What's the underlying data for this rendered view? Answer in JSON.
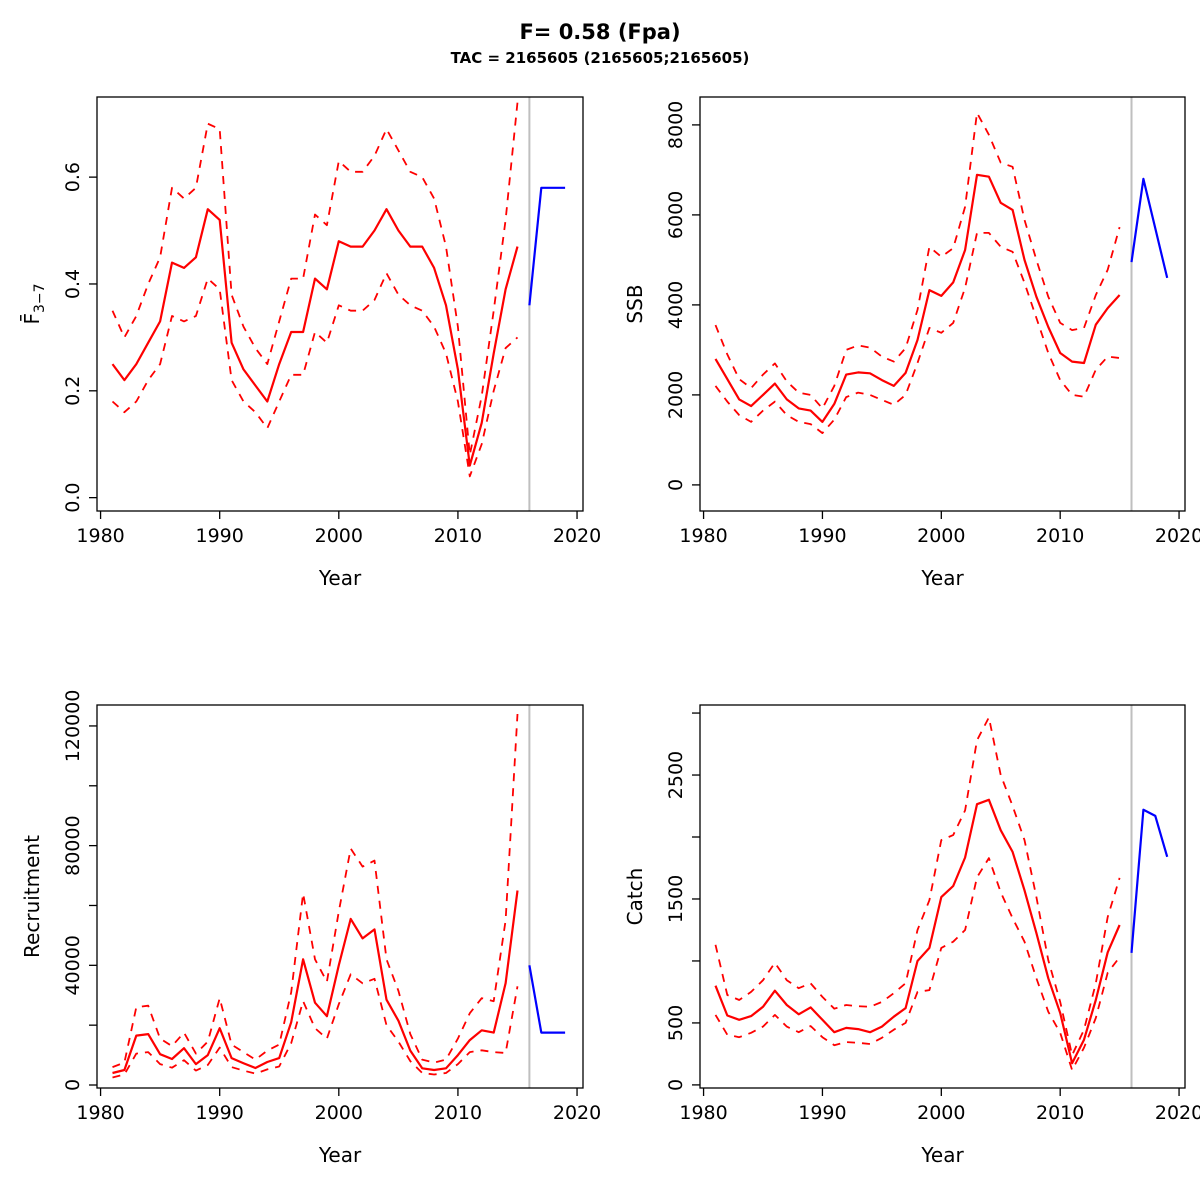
{
  "header": {
    "title": "F= 0.58 (Fpa)",
    "subtitle": "TAC = 2165605 (2165605;2165605)"
  },
  "colors": {
    "history": "#fe0000",
    "forecast": "#0000fe",
    "divider": "#bfbfbf",
    "axis": "#000000"
  },
  "divider_year": 2016,
  "chart_data": [
    {
      "type": "line",
      "name": "F3-7",
      "ylabel": "F3-7",
      "ylabel_parts": {
        "base": "F̄",
        "sub": "3−7"
      },
      "xlabel": "Year",
      "x": [
        1981,
        1982,
        1983,
        1984,
        1985,
        1986,
        1987,
        1988,
        1989,
        1990,
        1991,
        1992,
        1993,
        1994,
        1995,
        1996,
        1997,
        1998,
        1999,
        2000,
        2001,
        2002,
        2003,
        2004,
        2005,
        2006,
        2007,
        2008,
        2009,
        2010,
        2011,
        2012,
        2013,
        2014,
        2015
      ],
      "series": [
        {
          "name": "median",
          "role": "history",
          "style": "solid",
          "values": [
            0.25,
            0.22,
            0.25,
            0.29,
            0.33,
            0.44,
            0.43,
            0.45,
            0.54,
            0.52,
            0.29,
            0.24,
            0.21,
            0.18,
            0.25,
            0.31,
            0.31,
            0.41,
            0.39,
            0.48,
            0.47,
            0.47,
            0.5,
            0.54,
            0.5,
            0.47,
            0.47,
            0.43,
            0.36,
            0.24,
            0.06,
            0.14,
            0.27,
            0.39,
            0.47
          ]
        },
        {
          "name": "upper-ci",
          "role": "history",
          "style": "dashed",
          "values": [
            0.35,
            0.3,
            0.34,
            0.4,
            0.45,
            0.58,
            0.56,
            0.58,
            0.7,
            0.69,
            0.38,
            0.32,
            0.28,
            0.25,
            0.33,
            0.41,
            0.41,
            0.53,
            0.51,
            0.63,
            0.61,
            0.61,
            0.64,
            0.69,
            0.65,
            0.61,
            0.6,
            0.56,
            0.47,
            0.32,
            0.08,
            0.19,
            0.35,
            0.52,
            0.74
          ]
        },
        {
          "name": "lower-ci",
          "role": "history",
          "style": "dashed",
          "values": [
            0.18,
            0.16,
            0.18,
            0.22,
            0.25,
            0.34,
            0.33,
            0.34,
            0.41,
            0.39,
            0.22,
            0.18,
            0.16,
            0.13,
            0.18,
            0.23,
            0.23,
            0.31,
            0.29,
            0.36,
            0.35,
            0.35,
            0.37,
            0.42,
            0.38,
            0.36,
            0.35,
            0.32,
            0.27,
            0.18,
            0.04,
            0.1,
            0.2,
            0.28,
            0.3
          ]
        },
        {
          "name": "forecast-median",
          "role": "forecast",
          "style": "solid",
          "x": [
            2016,
            2017,
            2018,
            2019
          ],
          "values": [
            0.36,
            0.58,
            0.58,
            0.58
          ]
        }
      ],
      "xlim": [
        1979.7,
        2020.5
      ],
      "ylim": [
        -0.025,
        0.75
      ],
      "xticks": [
        1980,
        1990,
        2000,
        2010,
        2020
      ],
      "yticks": [
        {
          "v": 0,
          "label": "0.0"
        },
        {
          "v": 0.2,
          "label": "0.2"
        },
        {
          "v": 0.4,
          "label": "0.4"
        },
        {
          "v": 0.6,
          "label": "0.6"
        }
      ],
      "grid": false,
      "legend": null
    },
    {
      "type": "line",
      "name": "SSB",
      "ylabel": "SSB",
      "xlabel": "Year",
      "x": [
        1981,
        1982,
        1983,
        1984,
        1985,
        1986,
        1987,
        1988,
        1989,
        1990,
        1991,
        1992,
        1993,
        1994,
        1995,
        1996,
        1997,
        1998,
        1999,
        2000,
        2001,
        2002,
        2003,
        2004,
        2005,
        2006,
        2007,
        2008,
        2009,
        2010,
        2011,
        2012,
        2013,
        2014,
        2015
      ],
      "series": [
        {
          "name": "median",
          "role": "history",
          "style": "solid",
          "values": [
            2800,
            2350,
            1900,
            1750,
            2000,
            2250,
            1900,
            1700,
            1650,
            1400,
            1800,
            2450,
            2500,
            2480,
            2330,
            2200,
            2490,
            3220,
            4330,
            4200,
            4500,
            5220,
            6890,
            6850,
            6270,
            6110,
            5000,
            4180,
            3510,
            2930,
            2740,
            2710,
            3560,
            3930,
            4220
          ]
        },
        {
          "name": "upper-ci",
          "role": "history",
          "style": "dashed",
          "values": [
            3550,
            2900,
            2350,
            2150,
            2450,
            2700,
            2300,
            2050,
            2000,
            1700,
            2200,
            3000,
            3100,
            3050,
            2850,
            2740,
            3040,
            3890,
            5290,
            5070,
            5260,
            6180,
            8270,
            7780,
            7160,
            7070,
            5890,
            5000,
            4180,
            3600,
            3440,
            3490,
            4220,
            4780,
            5730
          ]
        },
        {
          "name": "lower-ci",
          "role": "history",
          "style": "dashed",
          "values": [
            2200,
            1850,
            1550,
            1400,
            1650,
            1850,
            1550,
            1400,
            1350,
            1150,
            1450,
            1950,
            2050,
            2000,
            1890,
            1780,
            2000,
            2710,
            3490,
            3380,
            3600,
            4380,
            5600,
            5600,
            5290,
            5180,
            4490,
            3710,
            2930,
            2330,
            2000,
            1960,
            2560,
            2850,
            2820
          ]
        },
        {
          "name": "forecast-median",
          "role": "forecast",
          "style": "solid",
          "x": [
            2016,
            2017,
            2018,
            2019
          ],
          "values": [
            4950,
            6800,
            5700,
            4600
          ]
        }
      ],
      "xlim": [
        1979.7,
        2020.5
      ],
      "ylim": [
        -580,
        8620
      ],
      "xticks": [
        1980,
        1990,
        2000,
        2010,
        2020
      ],
      "yticks": [
        {
          "v": 0,
          "label": "0"
        },
        {
          "v": 2000,
          "label": "2000"
        },
        {
          "v": 4000,
          "label": "4000"
        },
        {
          "v": 6000,
          "label": "6000"
        },
        {
          "v": 8000,
          "label": "8000"
        }
      ],
      "grid": false,
      "legend": null
    },
    {
      "type": "line",
      "name": "Recruitment",
      "ylabel": "Recruitment",
      "xlabel": "Year",
      "x": [
        1981,
        1982,
        1983,
        1984,
        1985,
        1986,
        1987,
        1988,
        1989,
        1990,
        1991,
        1992,
        1993,
        1994,
        1995,
        1996,
        1997,
        1998,
        1999,
        2000,
        2001,
        2002,
        2003,
        2004,
        2005,
        2006,
        2007,
        2008,
        2009,
        2010,
        2011,
        2012,
        2013,
        2014,
        2015
      ],
      "series": [
        {
          "name": "median",
          "role": "history",
          "style": "solid",
          "values": [
            4000,
            5000,
            16500,
            17000,
            10300,
            8700,
            12300,
            7000,
            10000,
            19000,
            9000,
            7300,
            5700,
            7700,
            9000,
            21000,
            42000,
            27500,
            23000,
            40000,
            55500,
            49000,
            52000,
            28500,
            21500,
            11500,
            5600,
            5000,
            5600,
            10000,
            15000,
            18300,
            17500,
            34000,
            65000
          ]
        },
        {
          "name": "upper-ci",
          "role": "history",
          "style": "dashed",
          "values": [
            6000,
            7500,
            26000,
            26500,
            15500,
            13000,
            17500,
            10500,
            14500,
            29000,
            13500,
            11000,
            8500,
            11500,
            13500,
            31000,
            64000,
            42000,
            34500,
            58000,
            79000,
            73000,
            75000,
            42000,
            31500,
            17000,
            8500,
            7500,
            8500,
            15500,
            24000,
            29000,
            28000,
            55000,
            124000
          ]
        },
        {
          "name": "lower-ci",
          "role": "history",
          "style": "dashed",
          "values": [
            2500,
            3500,
            10500,
            11000,
            7000,
            5800,
            8300,
            4800,
            6700,
            12500,
            6000,
            4800,
            3800,
            5200,
            6200,
            14000,
            28000,
            19000,
            15500,
            27000,
            37000,
            34000,
            35500,
            20000,
            14500,
            8000,
            4000,
            3500,
            4000,
            7000,
            11000,
            11600,
            11000,
            10700,
            33000
          ]
        },
        {
          "name": "forecast-median",
          "role": "forecast",
          "style": "solid",
          "x": [
            2016,
            2017,
            2018,
            2019
          ],
          "values": [
            40000,
            17500,
            17500,
            17500
          ]
        }
      ],
      "xlim": [
        1979.7,
        2020.5
      ],
      "ylim": [
        -1000,
        127000
      ],
      "xticks": [
        1980,
        1990,
        2000,
        2010,
        2020
      ],
      "yticks": [
        {
          "v": 0,
          "label": "0"
        },
        {
          "v": 20000,
          "label": ""
        },
        {
          "v": 40000,
          "label": "40000"
        },
        {
          "v": 60000,
          "label": ""
        },
        {
          "v": 80000,
          "label": "80000"
        },
        {
          "v": 100000,
          "label": ""
        },
        {
          "v": 120000,
          "label": "120000"
        }
      ],
      "grid": false,
      "legend": null
    },
    {
      "type": "line",
      "name": "Catch",
      "ylabel": "Catch",
      "xlabel": "Year",
      "x": [
        1981,
        1982,
        1983,
        1984,
        1985,
        1986,
        1987,
        1988,
        1989,
        1990,
        1991,
        1992,
        1993,
        1994,
        1995,
        1996,
        1997,
        1998,
        1999,
        2000,
        2001,
        2002,
        2003,
        2004,
        2005,
        2006,
        2007,
        2008,
        2009,
        2010,
        2011,
        2012,
        2013,
        2014,
        2015
      ],
      "series": [
        {
          "name": "median",
          "role": "history",
          "style": "solid",
          "values": [
            800,
            560,
            525,
            555,
            630,
            760,
            645,
            570,
            625,
            525,
            425,
            460,
            450,
            425,
            470,
            550,
            620,
            1000,
            1105,
            1515,
            1605,
            1835,
            2265,
            2300,
            2055,
            1880,
            1570,
            1225,
            860,
            580,
            175,
            365,
            685,
            1070,
            1290
          ]
        },
        {
          "name": "upper-ci",
          "role": "history",
          "style": "dashed",
          "values": [
            1130,
            725,
            685,
            750,
            845,
            985,
            845,
            780,
            820,
            710,
            615,
            645,
            635,
            630,
            670,
            740,
            820,
            1250,
            1490,
            1975,
            2015,
            2215,
            2780,
            2965,
            2500,
            2250,
            1975,
            1515,
            1005,
            670,
            240,
            445,
            820,
            1355,
            1670
          ]
        },
        {
          "name": "lower-ci",
          "role": "history",
          "style": "dashed",
          "values": [
            565,
            405,
            385,
            420,
            470,
            565,
            470,
            425,
            475,
            385,
            320,
            345,
            340,
            330,
            380,
            445,
            500,
            750,
            765,
            1105,
            1155,
            1250,
            1675,
            1830,
            1555,
            1345,
            1155,
            860,
            590,
            420,
            120,
            300,
            540,
            905,
            1030
          ]
        },
        {
          "name": "forecast-median",
          "role": "forecast",
          "style": "solid",
          "x": [
            2016,
            2017,
            2018,
            2019
          ],
          "values": [
            1065,
            2220,
            2170,
            1840
          ]
        }
      ],
      "xlim": [
        1979.7,
        2020.5
      ],
      "ylim": [
        -25,
        3065
      ],
      "xticks": [
        1980,
        1990,
        2000,
        2010,
        2020
      ],
      "yticks": [
        {
          "v": 0,
          "label": "0"
        },
        {
          "v": 500,
          "label": "500"
        },
        {
          "v": 1000,
          "label": ""
        },
        {
          "v": 1500,
          "label": "1500"
        },
        {
          "v": 2000,
          "label": ""
        },
        {
          "v": 2500,
          "label": "2500"
        },
        {
          "v": 3000,
          "label": ""
        }
      ],
      "grid": false,
      "legend": null
    }
  ]
}
